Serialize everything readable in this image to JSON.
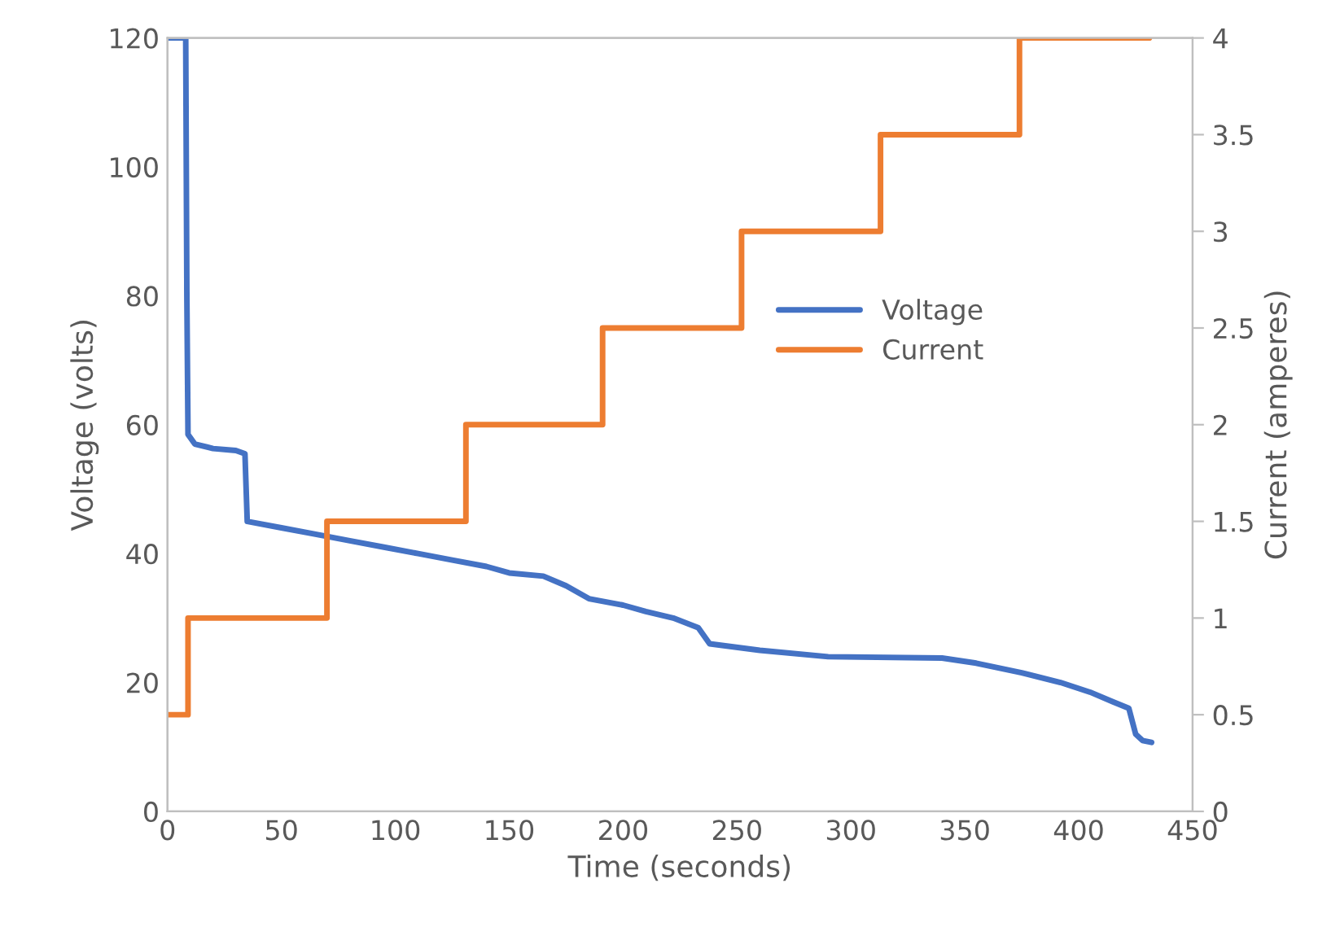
{
  "chart_data": {
    "type": "line",
    "xlabel": "Time (seconds)",
    "ylabel": "Voltage (volts)",
    "y2label": "Current (amperes)",
    "xlim": [
      0,
      450
    ],
    "xticks": [
      0,
      50,
      100,
      150,
      200,
      250,
      300,
      350,
      400,
      450
    ],
    "ylim": [
      0,
      120
    ],
    "yticks": [
      0,
      20,
      40,
      60,
      80,
      100,
      120
    ],
    "y2lim": [
      0,
      4
    ],
    "y2ticks": [
      0,
      0.5,
      1,
      1.5,
      2,
      2.5,
      3,
      3.5,
      4
    ],
    "grid": false,
    "legend": "right",
    "marker": "none",
    "line_style": "solid",
    "series": [
      {
        "name": "Voltage",
        "color": "#4472c4",
        "x": [
          0,
          8,
          8.5,
          9,
          12,
          20,
          30,
          34,
          35,
          50,
          65,
          80,
          95,
          110,
          125,
          140,
          150,
          165,
          175,
          185,
          200,
          210,
          222,
          233,
          238,
          260,
          290,
          340,
          355,
          375,
          392,
          405,
          415,
          422,
          425,
          428,
          432
        ],
        "values": [
          120,
          120,
          80,
          58.5,
          57,
          56.3,
          56,
          55.5,
          45,
          44,
          43,
          42,
          41,
          40,
          39,
          38,
          37,
          36.5,
          35,
          33,
          32,
          31,
          30,
          28.5,
          26,
          25,
          24,
          23.8,
          23,
          21.5,
          20,
          18.5,
          17,
          16,
          12,
          11,
          10.7
        ]
      },
      {
        "name": "Current",
        "color": "#ed7d31",
        "type": "step",
        "axis": "y2",
        "x": [
          0,
          9,
          70,
          131,
          191,
          252,
          313,
          374,
          431
        ],
        "values": [
          0.5,
          1,
          1.5,
          2,
          2.5,
          3,
          3.5,
          4,
          4
        ]
      }
    ]
  }
}
